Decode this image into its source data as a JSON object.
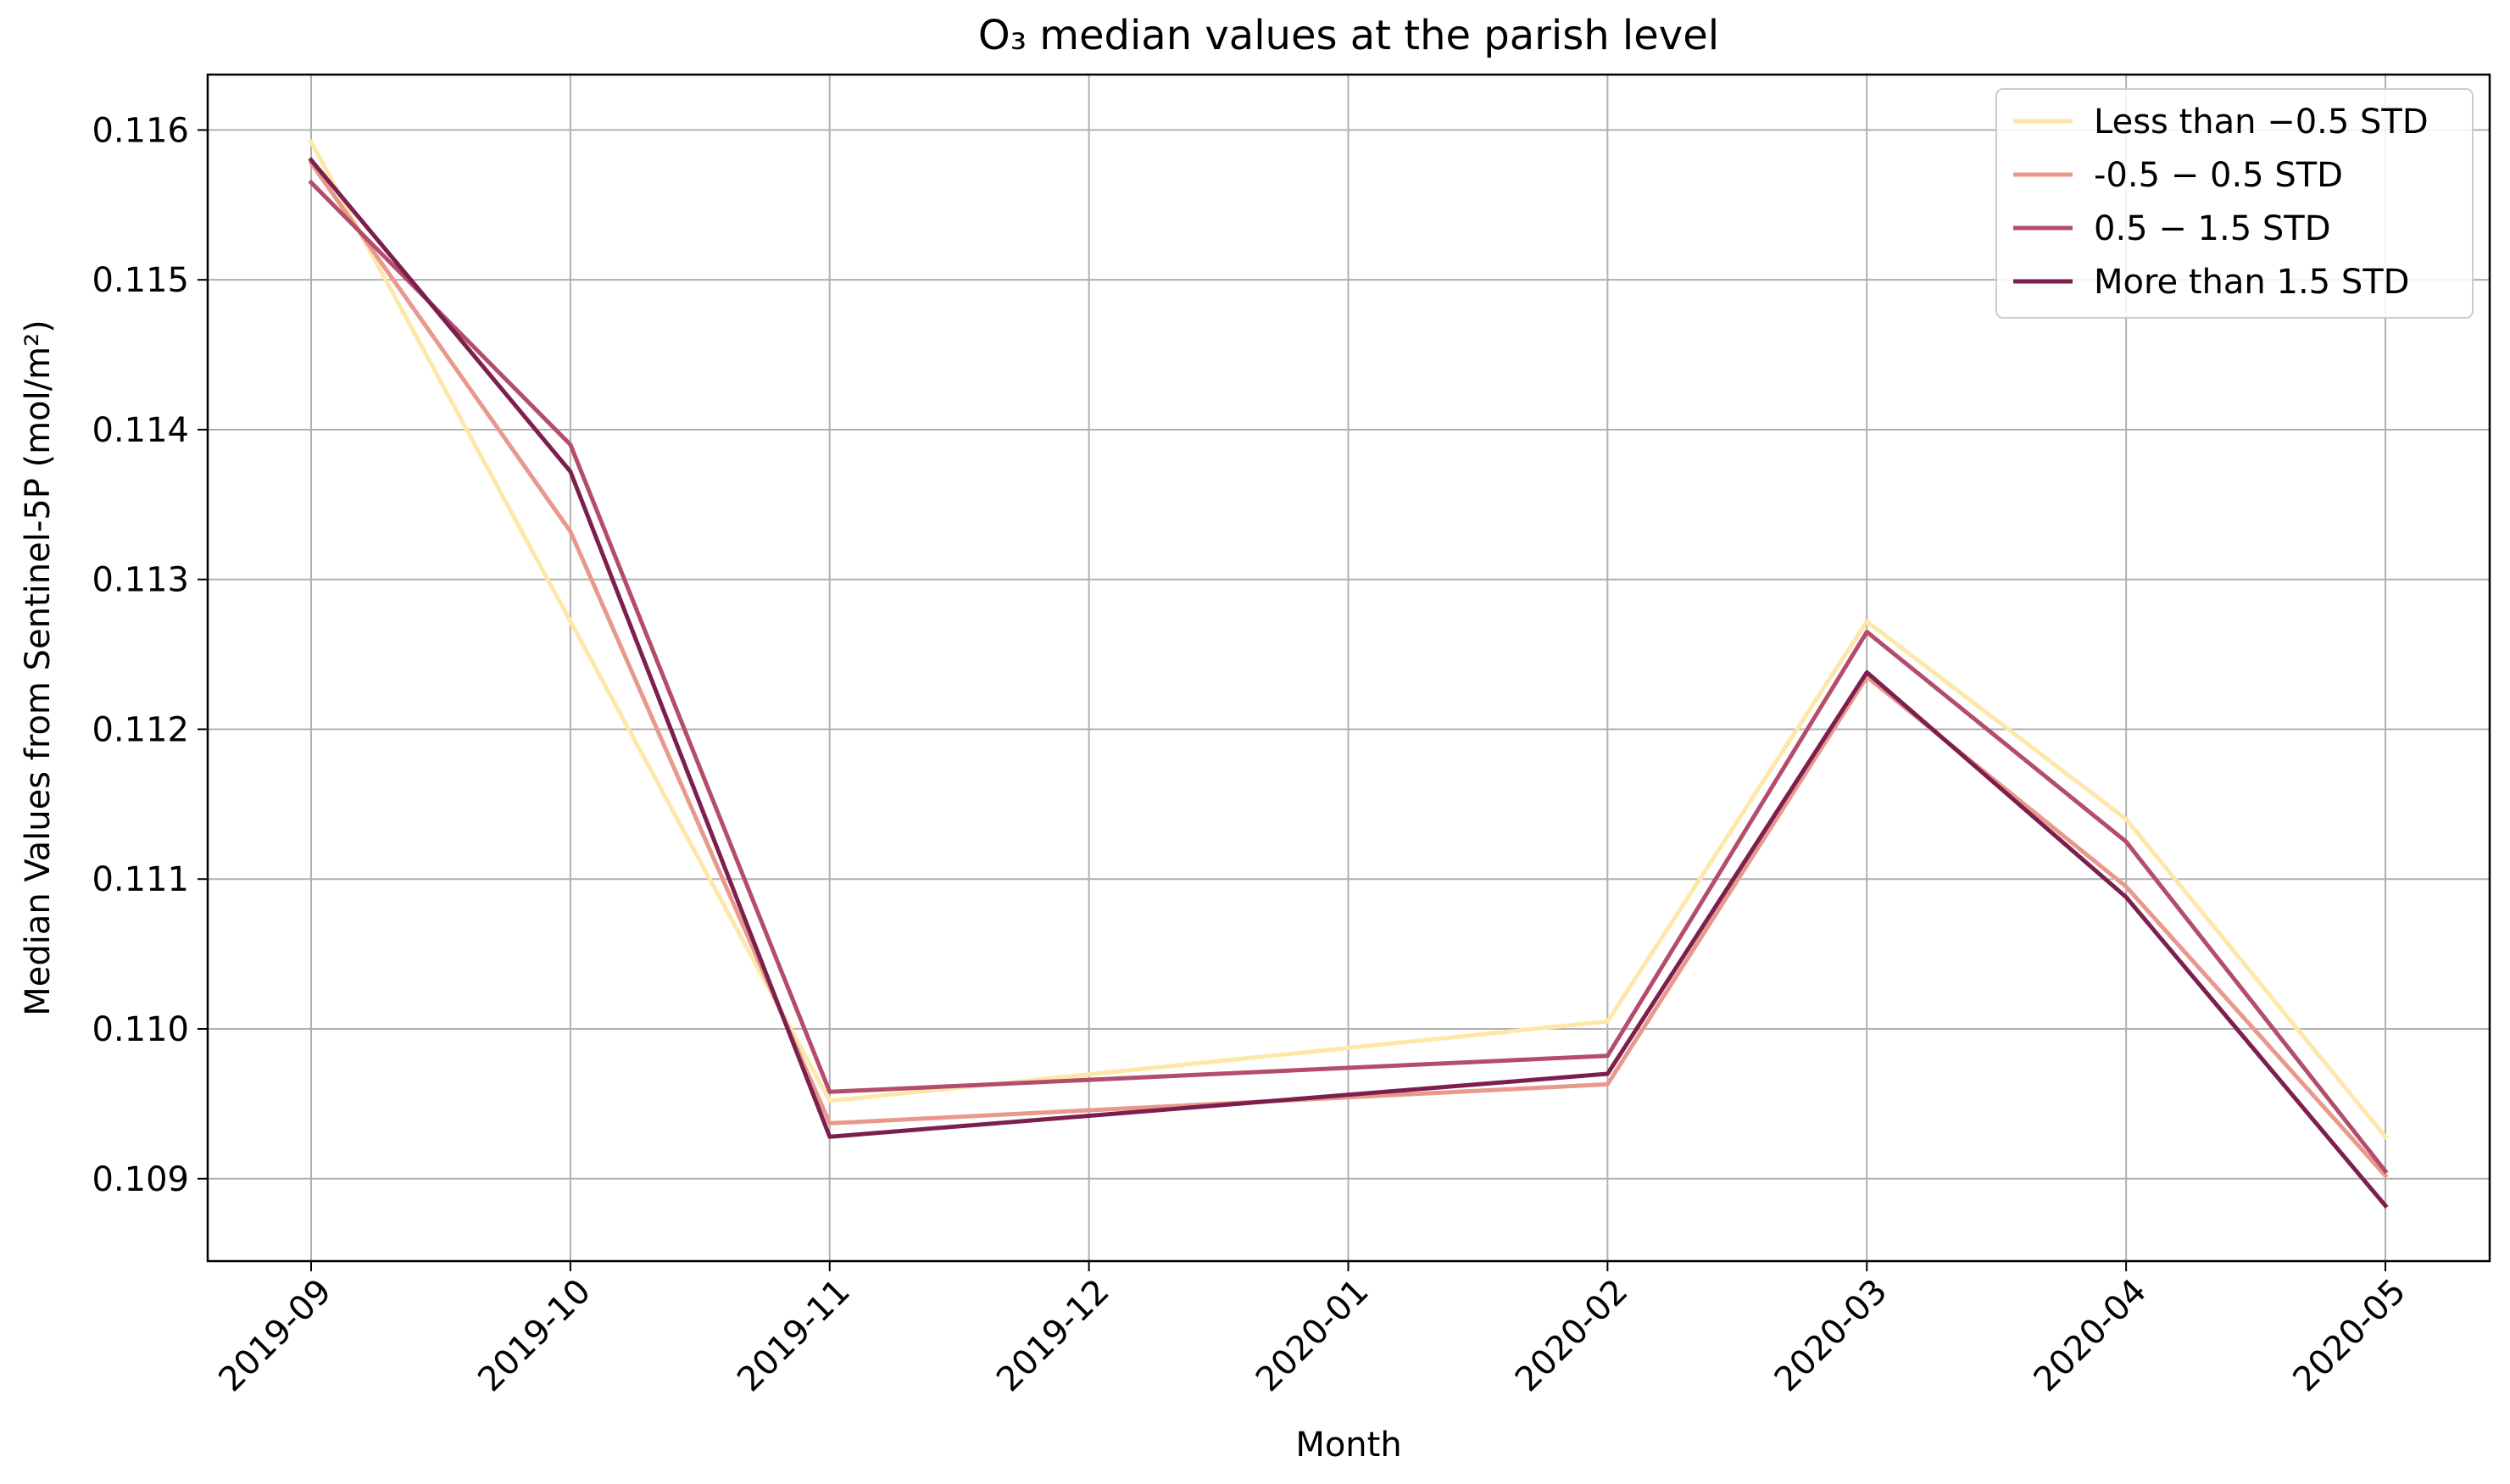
{
  "chart_data": {
    "type": "line",
    "title": "O₃ median values at the parish level",
    "xlabel": "Month",
    "ylabel": "Median Values from Sentinel-5P (mol/m²)",
    "categories": [
      "2019-09",
      "2019-10",
      "2019-11",
      "2019-12",
      "2020-01",
      "2020-02",
      "2020-03",
      "2020-04",
      "2020-05"
    ],
    "ylim": [
      0.10845,
      0.11637
    ],
    "yticks": [
      "0.109",
      "0.110",
      "0.111",
      "0.112",
      "0.113",
      "0.114",
      "0.115",
      "0.116"
    ],
    "grid": true,
    "legend_position": "top-right",
    "series": [
      {
        "name": "Less than −0.5 STD",
        "color": "#fde7a9",
        "x": [
          "2019-09",
          "2019-11",
          "2020-02",
          "2020-03",
          "2020-04",
          "2020-05"
        ],
        "values": [
          0.11592,
          0.10952,
          0.11005,
          0.11272,
          0.1114,
          0.10928
        ]
      },
      {
        "name": "-0.5 − 0.5 STD",
        "color": "#e8998c",
        "x": [
          "2019-09",
          "2019-10",
          "2019-11",
          "2020-02",
          "2020-03",
          "2020-04",
          "2020-05"
        ],
        "values": [
          0.11578,
          0.11332,
          0.10937,
          0.10963,
          0.11235,
          0.11095,
          0.10902
        ]
      },
      {
        "name": "0.5 − 1.5 STD",
        "color": "#b44d6c",
        "x": [
          "2019-09",
          "2019-10",
          "2019-11",
          "2020-02",
          "2020-03",
          "2020-04",
          "2020-05"
        ],
        "values": [
          0.11565,
          0.1139,
          0.10958,
          0.10982,
          0.11265,
          0.11125,
          0.10905
        ]
      },
      {
        "name": "More than 1.5 STD",
        "color": "#7c1f4e",
        "x": [
          "2019-09",
          "2019-10",
          "2019-11",
          "2020-02",
          "2020-03",
          "2020-04",
          "2020-05"
        ],
        "values": [
          0.1158,
          0.11372,
          0.10928,
          0.1097,
          0.11238,
          0.11088,
          0.10882
        ]
      }
    ]
  }
}
